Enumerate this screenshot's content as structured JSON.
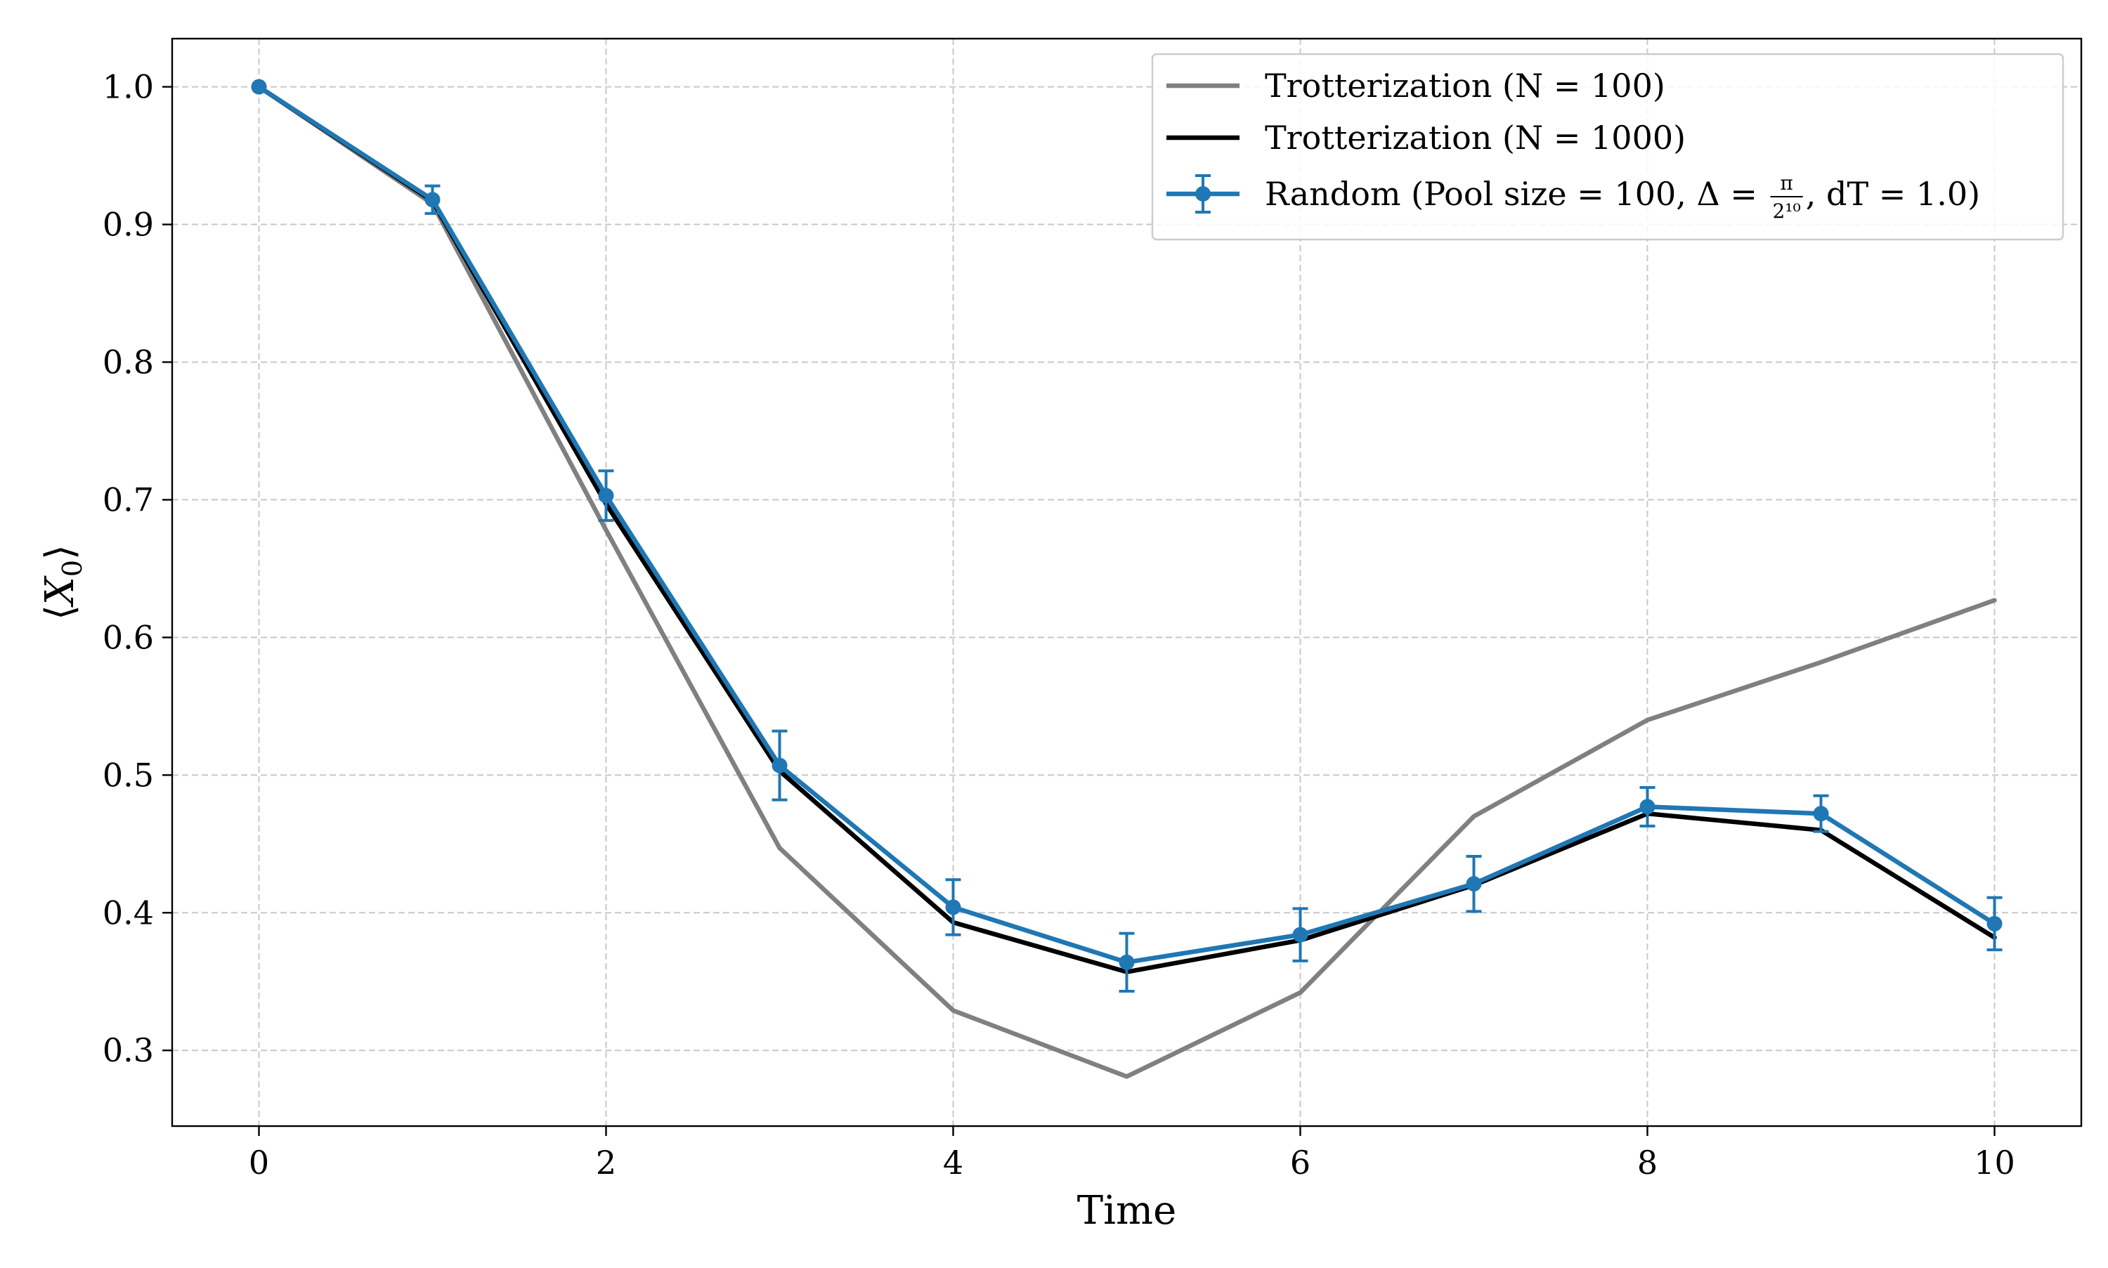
{
  "chart_data": {
    "type": "line",
    "title": "",
    "xlabel": "Time",
    "ylabel": "⟨X0⟩",
    "xlim": [
      -0.5,
      10.5
    ],
    "ylim": [
      0.245,
      1.035
    ],
    "xticks": [
      "0",
      "2",
      "4",
      "6",
      "8",
      "10"
    ],
    "yticks": [
      "0.3",
      "0.4",
      "0.5",
      "0.6",
      "0.7",
      "0.8",
      "0.9",
      "1.0"
    ],
    "grid": true,
    "legend_position": "top-right",
    "series": [
      {
        "name": "Trotterization (N = 100)",
        "color": "#808080",
        "x": [
          0,
          1,
          2,
          3,
          4,
          5,
          6,
          7,
          8,
          9,
          10
        ],
        "y": [
          1.0,
          0.915,
          0.678,
          0.447,
          0.329,
          0.281,
          0.342,
          0.47,
          0.54,
          0.582,
          0.627
        ]
      },
      {
        "name": "Trotterization (N = 1000)",
        "color": "#000000",
        "x": [
          0,
          1,
          2,
          3,
          4,
          5,
          6,
          7,
          8,
          9,
          10
        ],
        "y": [
          1.0,
          0.917,
          0.697,
          0.503,
          0.393,
          0.357,
          0.38,
          0.42,
          0.472,
          0.46,
          0.382
        ]
      },
      {
        "name": "Random (Pool size = 100, Δ = π/2¹⁰, dT = 1.0)",
        "legend_prefix": "Random (Pool size = 100, Δ = ",
        "legend_frac_num": "π",
        "legend_frac_den": "2¹⁰",
        "legend_suffix": ", dT = 1.0)",
        "color": "#1f77b4",
        "x": [
          0,
          1,
          2,
          3,
          4,
          5,
          6,
          7,
          8,
          9,
          10
        ],
        "y": [
          1.0,
          0.918,
          0.703,
          0.507,
          0.404,
          0.364,
          0.384,
          0.421,
          0.477,
          0.472,
          0.392
        ],
        "yerr": [
          0.0,
          0.01,
          0.018,
          0.025,
          0.02,
          0.021,
          0.019,
          0.02,
          0.014,
          0.013,
          0.019
        ]
      }
    ]
  }
}
